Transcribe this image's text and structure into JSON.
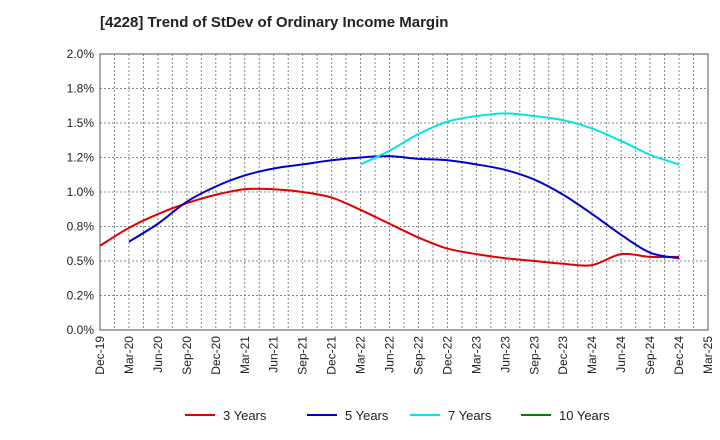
{
  "chart_data": {
    "type": "line",
    "title": "[4228]  Trend of StDev of Ordinary Income Margin",
    "xlabel": "",
    "ylabel": "",
    "ylim": [
      0,
      2.0
    ],
    "y_ticks": [
      "0.0%",
      "0.2%",
      "0.5%",
      "0.8%",
      "1.0%",
      "1.2%",
      "1.5%",
      "1.8%",
      "2.0%"
    ],
    "x_ticks": [
      "Dec-19",
      "Mar-20",
      "Jun-20",
      "Sep-20",
      "Dec-20",
      "Mar-21",
      "Jun-21",
      "Sep-21",
      "Dec-21",
      "Mar-22",
      "Jun-22",
      "Sep-22",
      "Dec-22",
      "Mar-23",
      "Jun-23",
      "Sep-23",
      "Dec-23",
      "Mar-24",
      "Jun-24",
      "Sep-24",
      "Dec-24",
      "Mar-25"
    ],
    "grid": true,
    "legend_position": "bottom",
    "series": [
      {
        "name": "3 Years",
        "color": "#e00000",
        "x": [
          "Dec-19",
          "Mar-20",
          "Jun-20",
          "Sep-20",
          "Dec-20",
          "Mar-21",
          "Jun-21",
          "Sep-21",
          "Dec-21",
          "Mar-22",
          "Jun-22",
          "Sep-22",
          "Dec-22",
          "Mar-23",
          "Jun-23",
          "Sep-23",
          "Dec-23",
          "Mar-24",
          "Jun-24",
          "Sep-24",
          "Dec-24"
        ],
        "values": [
          0.61,
          0.74,
          0.84,
          0.92,
          0.98,
          1.02,
          1.02,
          1.0,
          0.96,
          0.87,
          0.77,
          0.67,
          0.59,
          0.55,
          0.52,
          0.5,
          0.48,
          0.47,
          0.55,
          0.53,
          0.53
        ]
      },
      {
        "name": "5 Years",
        "color": "#0000cc",
        "x": [
          "Mar-20",
          "Jun-20",
          "Sep-20",
          "Dec-20",
          "Mar-21",
          "Jun-21",
          "Sep-21",
          "Dec-21",
          "Mar-22",
          "Jun-22",
          "Sep-22",
          "Dec-22",
          "Mar-23",
          "Jun-23",
          "Sep-23",
          "Dec-23",
          "Mar-24",
          "Jun-24",
          "Sep-24",
          "Dec-24"
        ],
        "values": [
          0.64,
          0.77,
          0.93,
          1.04,
          1.12,
          1.17,
          1.2,
          1.23,
          1.25,
          1.26,
          1.24,
          1.23,
          1.2,
          1.16,
          1.09,
          0.98,
          0.84,
          0.69,
          0.56,
          0.52
        ]
      },
      {
        "name": "7 Years",
        "color": "#00e5e5",
        "x": [
          "Mar-22",
          "Jun-22",
          "Sep-22",
          "Dec-22",
          "Mar-23",
          "Jun-23",
          "Sep-23",
          "Dec-23",
          "Mar-24",
          "Jun-24",
          "Sep-24",
          "Dec-24"
        ],
        "values": [
          1.2,
          1.3,
          1.42,
          1.51,
          1.55,
          1.57,
          1.55,
          1.52,
          1.46,
          1.37,
          1.27,
          1.2
        ]
      },
      {
        "name": "10 Years",
        "color": "#008000",
        "x": [],
        "values": []
      }
    ]
  }
}
